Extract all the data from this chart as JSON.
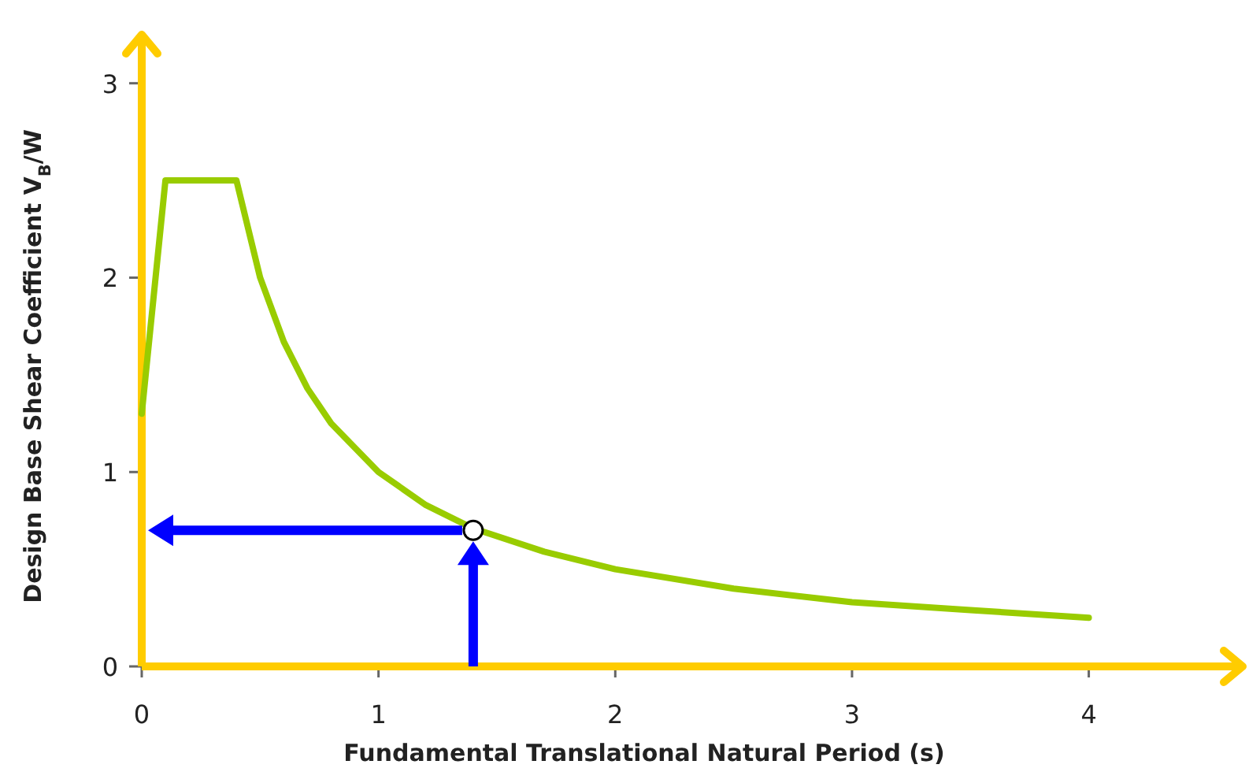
{
  "chart_data": {
    "type": "line",
    "xlabel": "Fundamental Translational Natural Period (s)",
    "ylabel": "Design Base Shear Coefficient V$_{B}$/W",
    "xlim": [
      0,
      4.65
    ],
    "ylim": [
      0,
      3.25
    ],
    "xticks": [
      0,
      1,
      2,
      3,
      4
    ],
    "yticks": [
      0,
      1,
      2,
      3
    ],
    "series": [
      {
        "color": "#99cc00",
        "x": [
          0,
          0.1,
          0.4,
          0.5,
          0.6,
          0.7,
          0.8,
          1,
          1.2,
          1.4,
          1.7,
          2,
          2.5,
          3,
          3.5,
          4
        ],
        "values": [
          1.3,
          2.5,
          2.5,
          2,
          1.67,
          1.43,
          1.25,
          1,
          0.83,
          0.71,
          0.59,
          0.5,
          0.4,
          0.33,
          0.29,
          0.25
        ]
      },
      {
        "type": "scatter",
        "color": "#000000",
        "marker": "circle",
        "x": [
          1.4
        ],
        "values": [
          0.7
        ]
      }
    ]
  }
}
